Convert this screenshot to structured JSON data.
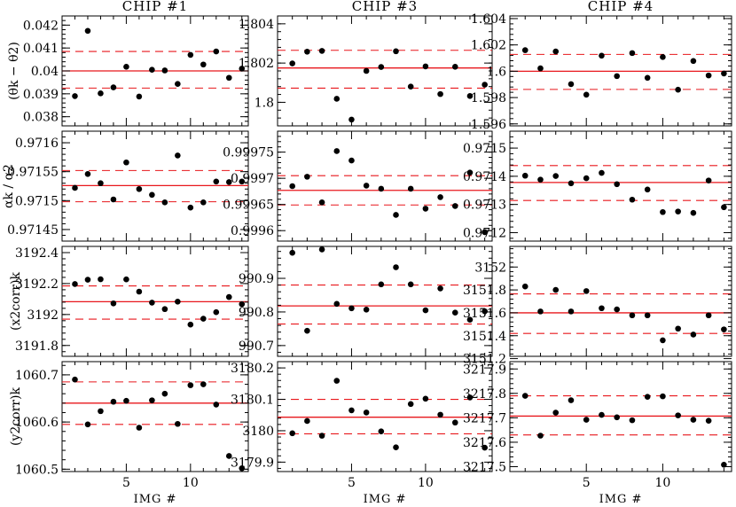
{
  "chart_data": {
    "type": "scatter",
    "title": "",
    "columns": [
      "CHIP #1",
      "CHIP #3",
      "CHIP #4"
    ],
    "xlabel": "IMG #",
    "xlim": [
      0,
      14.5
    ],
    "xticks": [
      5,
      10
    ],
    "row_labels": [
      "(θk − θ2)",
      "αk / α2",
      "(x2corr)k",
      "(y2corr)k"
    ],
    "panels": [
      [
        {
          "ylim": [
            0.0376,
            0.0424
          ],
          "yticks": [
            0.038,
            0.039,
            0.04,
            0.041,
            0.042
          ],
          "ytick_labels": [
            "0.038",
            "0.039",
            "0.04",
            "0.041",
            "0.042"
          ],
          "mean": 0.04,
          "sigma_low": 0.03925,
          "sigma_high": 0.04085,
          "x": [
            1,
            2,
            3,
            4,
            5,
            6,
            7,
            8,
            9,
            10,
            11,
            12,
            13,
            14
          ],
          "y": [
            0.0389,
            0.04175,
            0.03902,
            0.03928,
            0.04018,
            0.03888,
            0.04005,
            0.04002,
            0.03943,
            0.0407,
            0.04028,
            0.04085,
            0.0397,
            0.0401
          ]
        },
        {
          "ylim": [
            0.97143,
            0.97162
          ],
          "yticks": [
            0.97145,
            0.9715,
            0.97155,
            0.9716
          ],
          "ytick_labels": [
            "0.97145",
            "0.9715",
            "0.97155",
            "0.9716"
          ],
          "mean": 0.971526,
          "sigma_low": 0.971498,
          "sigma_high": 0.971552,
          "x": [
            1,
            2,
            3,
            4,
            5,
            6,
            7,
            8,
            9,
            10,
            11,
            12,
            13,
            14
          ],
          "y": [
            0.971522,
            0.971546,
            0.97153,
            0.971502,
            0.971566,
            0.97152,
            0.97151,
            0.971497,
            0.971578,
            0.971488,
            0.971497,
            0.971533,
            0.971532,
            0.971533
          ]
        },
        {
          "ylim": [
            3191.73,
            3192.44
          ],
          "yticks": [
            3191.8,
            3192,
            3192.2,
            3192.4
          ],
          "ytick_labels": [
            "3191.8",
            "3192",
            "3192.2",
            "3192.4"
          ],
          "mean": 3192.083,
          "sigma_low": 3191.97,
          "sigma_high": 3192.185,
          "x": [
            1,
            2,
            3,
            4,
            5,
            6,
            7,
            8,
            9,
            10,
            11,
            12,
            13,
            14
          ],
          "y": [
            3192.197,
            3192.225,
            3192.228,
            3192.072,
            3192.227,
            3192.148,
            3192.077,
            3192.035,
            3192.083,
            3191.935,
            3191.973,
            3192.015,
            3192.113,
            3192.067
          ]
        },
        {
          "ylim": [
            1060.495,
            1060.728
          ],
          "yticks": [
            1060.5,
            1060.6,
            1060.7
          ],
          "ytick_labels": [
            "1060.5",
            "1060.6",
            "1060.7"
          ],
          "mean": 1060.64,
          "sigma_low": 1060.595,
          "sigma_high": 1060.685,
          "x": [
            1,
            2,
            3,
            4,
            5,
            6,
            7,
            8,
            9,
            10,
            11,
            12,
            13,
            14
          ],
          "y": [
            1060.69,
            1060.595,
            1060.623,
            1060.643,
            1060.645,
            1060.588,
            1060.646,
            1060.66,
            1060.596,
            1060.678,
            1060.68,
            1060.637,
            1060.528,
            1060.502
          ]
        }
      ],
      [
        {
          "ylim": [
            1.7988,
            1.8044
          ],
          "yticks": [
            1.8,
            1.802,
            1.804
          ],
          "ytick_labels": [
            "1.8",
            "1.802",
            "1.804"
          ],
          "mean": 1.80175,
          "sigma_low": 1.80072,
          "sigma_high": 1.80265,
          "x": [
            1,
            2,
            3,
            4,
            5,
            6,
            7,
            8,
            9,
            10,
            11,
            12,
            13,
            14
          ],
          "y": [
            1.80198,
            1.80258,
            1.80262,
            1.80018,
            1.79912,
            1.8016,
            1.8018,
            1.8026,
            1.8008,
            1.80183,
            1.80042,
            1.80181,
            1.80032,
            1.8009
          ]
        },
        {
          "ylim": [
            0.99958,
            0.99979
          ],
          "yticks": [
            0.9996,
            0.99965,
            0.9997,
            0.99975
          ],
          "ytick_labels": [
            "0.9996",
            "0.99965",
            "0.9997",
            "0.99975"
          ],
          "mean": 0.999677,
          "sigma_low": 0.999649,
          "sigma_high": 0.999705,
          "x": [
            1,
            2,
            3,
            4,
            5,
            6,
            7,
            8,
            9,
            10,
            11,
            12,
            13,
            14
          ],
          "y": [
            0.999685,
            0.999703,
            0.999654,
            0.999752,
            0.999734,
            0.999686,
            0.99968,
            0.99963,
            0.99968,
            0.999642,
            0.999664,
            0.999647,
            0.999711,
            0.999597
          ]
        },
        {
          "ylim": [
            990.668,
            990.995
          ],
          "yticks": [
            990.7,
            990.8,
            990.9
          ],
          "ytick_labels": [
            "990.7",
            "990.8",
            "990.9"
          ],
          "mean": 990.818,
          "sigma_low": 990.764,
          "sigma_high": 990.88,
          "x": [
            1,
            2,
            3,
            4,
            5,
            6,
            7,
            8,
            9,
            10,
            11,
            12,
            13,
            14
          ],
          "y": [
            990.976,
            990.744,
            990.986,
            990.824,
            990.811,
            990.807,
            990.882,
            990.933,
            990.882,
            990.805,
            990.87,
            990.798,
            990.777,
            990.802
          ]
        },
        {
          "ylim": [
            3179.87,
            3180.22
          ],
          "yticks": [
            3179.9,
            3180,
            3180.1,
            3180.2
          ],
          "ytick_labels": [
            "3179.9",
            "3180",
            "3180.1",
            "3180.2"
          ],
          "mean": 3180.043,
          "sigma_low": 3179.99,
          "sigma_high": 3180.1,
          "x": [
            1,
            2,
            3,
            4,
            5,
            6,
            7,
            8,
            9,
            10,
            11,
            12,
            13,
            14
          ],
          "y": [
            3179.992,
            3180.031,
            3179.984,
            3180.159,
            3180.065,
            3180.058,
            3179.998,
            3179.947,
            3180.085,
            3180.102,
            3180.051,
            3180.026,
            3180.106,
            3179.946
          ]
        }
      ],
      [
        {
          "ylim": [
            1.59585,
            1.6042
          ],
          "yticks": [
            1.596,
            1.598,
            1.6,
            1.602,
            1.604
          ],
          "ytick_labels": [
            "1.596",
            "1.598",
            "1.6",
            "1.602",
            "1.604"
          ],
          "mean": 1.6,
          "sigma_low": 1.59862,
          "sigma_high": 1.60128,
          "x": [
            1,
            2,
            3,
            4,
            5,
            6,
            7,
            8,
            9,
            10,
            11,
            12,
            13,
            14
          ],
          "y": [
            1.6016,
            1.60022,
            1.6015,
            1.59902,
            1.59822,
            1.60118,
            1.59963,
            1.60138,
            1.5995,
            1.60108,
            1.5986,
            1.60078,
            1.59968,
            1.59983
          ]
        },
        {
          "ylim": [
            0.97117,
            0.97156
          ],
          "yticks": [
            0.9712,
            0.9713,
            0.9714,
            0.9715
          ],
          "ytick_labels": [
            "0.9712",
            "0.9713",
            "0.9714",
            "0.9715"
          ],
          "mean": 0.971378,
          "sigma_low": 0.971314,
          "sigma_high": 0.971438,
          "x": [
            1,
            2,
            3,
            4,
            5,
            6,
            7,
            8,
            9,
            10,
            11,
            12,
            13,
            14
          ],
          "y": [
            0.971402,
            0.971388,
            0.971401,
            0.971375,
            0.971393,
            0.971412,
            0.971372,
            0.971317,
            0.971353,
            0.971273,
            0.971275,
            0.97127,
            0.971385,
            0.97129
          ]
        },
        {
          "ylim": [
            3151.22,
            3152.18
          ],
          "yticks": [
            3151.2,
            3151.4,
            3151.6,
            3151.8,
            3152
          ],
          "ytick_labels": [
            "3151.2",
            "3151.4",
            "3151.6",
            "3151.8",
            "3152"
          ],
          "mean": 3151.6,
          "sigma_low": 3151.42,
          "sigma_high": 3151.765,
          "x": [
            1,
            2,
            3,
            4,
            5,
            6,
            7,
            8,
            9,
            10,
            11,
            12,
            13,
            14
          ],
          "y": [
            3151.83,
            3151.612,
            3151.8,
            3151.612,
            3151.79,
            3151.64,
            3151.63,
            3151.578,
            3151.578,
            3151.36,
            3151.462,
            3151.41,
            3151.578,
            3151.455
          ]
        },
        {
          "ylim": [
            3217.48,
            3217.93
          ],
          "yticks": [
            3217.5,
            3217.6,
            3217.7,
            3217.8,
            3217.9
          ],
          "ytick_labels": [
            "3217.5",
            "3217.6",
            "3217.7",
            "3217.8",
            "3217.9"
          ],
          "mean": 3217.707,
          "sigma_low": 3217.63,
          "sigma_high": 3217.79,
          "x": [
            1,
            2,
            3,
            4,
            5,
            6,
            7,
            8,
            9,
            10,
            11,
            12,
            13,
            14
          ],
          "y": [
            3217.79,
            3217.627,
            3217.721,
            3217.772,
            3217.692,
            3217.712,
            3217.702,
            3217.69,
            3217.786,
            3217.788,
            3217.71,
            3217.692,
            3217.688,
            3217.508
          ]
        }
      ]
    ]
  }
}
